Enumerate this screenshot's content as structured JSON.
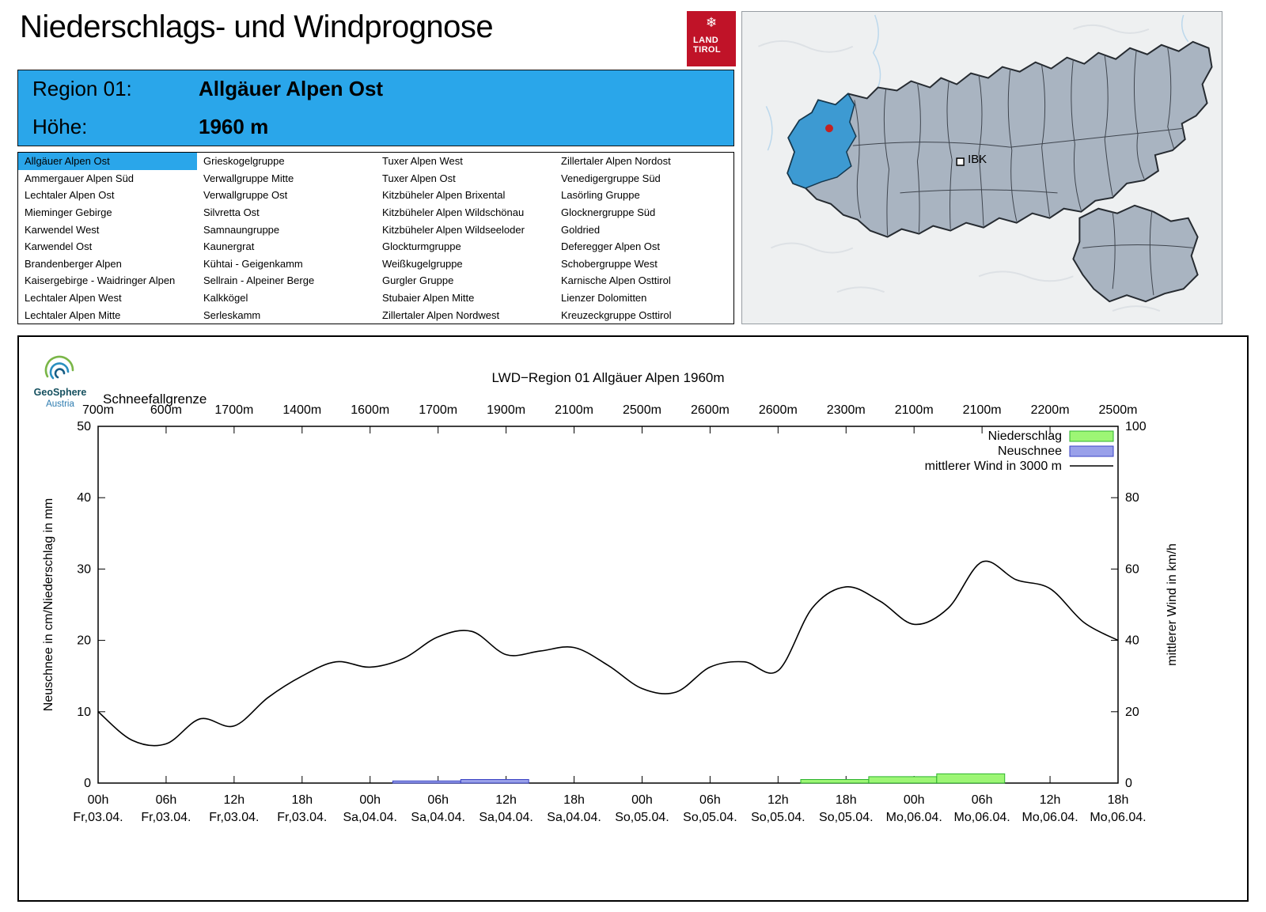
{
  "header": {
    "title": "Niederschlags- und Windprognose"
  },
  "logo": {
    "line1": "LAND",
    "line2": "TIROL"
  },
  "region_box": {
    "label_region": "Region 01:",
    "region_name": "Allgäuer Alpen Ost",
    "label_altitude": "Höhe:",
    "altitude": "1960 m",
    "bg": "#2aa6ea"
  },
  "map": {
    "city_label": "IBK",
    "highlight_color": "#3d9ad2",
    "region_fill": "#a9b4c1",
    "background": "#eef0f1"
  },
  "regions": {
    "selected": "Allgäuer Alpen Ost",
    "columns": [
      [
        "Allgäuer Alpen Ost",
        "Ammergauer Alpen Süd",
        "Lechtaler Alpen Ost",
        "Mieminger Gebirge",
        "Karwendel West",
        "Karwendel Ost",
        "Brandenberger Alpen",
        "Kaisergebirge - Waidringer Alpen",
        "Lechtaler Alpen West",
        "Lechtaler Alpen Mitte"
      ],
      [
        "Grieskogelgruppe",
        "Verwallgruppe Mitte",
        "Verwallgruppe Ost",
        "Silvretta Ost",
        "Samnaungruppe",
        "Kaunergrat",
        "Kühtai - Geigenkamm",
        "Sellrain - Alpeiner Berge",
        "Kalkkögel",
        "Serleskamm"
      ],
      [
        "Tuxer Alpen West",
        "Tuxer Alpen Ost",
        "Kitzbüheler Alpen Brixental",
        "Kitzbüheler Alpen Wildschönau",
        "Kitzbüheler Alpen Wildseeloder",
        "Glockturmgruppe",
        "Weißkugelgruppe",
        "Gurgler Gruppe",
        "Stubaier Alpen Mitte",
        "Zillertaler Alpen Nordwest"
      ],
      [
        "Zillertaler Alpen Nordost",
        "Venedigergruppe Süd",
        "Lasörling Gruppe",
        "Glocknergruppe Süd",
        "Goldried",
        "Deferegger Alpen Ost",
        "Schobergruppe West",
        "Karnische Alpen Osttirol",
        "Lienzer Dolomitten",
        "Kreuzeckgruppe Osttirol"
      ]
    ]
  },
  "attribution": {
    "brand": "GeoSphere",
    "sub": "Austria"
  },
  "chart_data": {
    "type": "line+bar",
    "title": "LWD−Region 01 Allgäuer Alpen 1960m",
    "snowline_label": "Schneefallgrenze",
    "snowline_values": [
      "700m",
      "600m",
      "1700m",
      "1400m",
      "1600m",
      "1700m",
      "1900m",
      "2100m",
      "2500m",
      "2600m",
      "2600m",
      "2300m",
      "2100m",
      "2100m",
      "2200m",
      "2500m"
    ],
    "ylabel_left": "Neuschnee in cm/Niederschlag in mm",
    "ylabel_right": "mittlerer Wind in km/h",
    "ylim_left": [
      0,
      50
    ],
    "ylim_right": [
      0,
      100
    ],
    "yticks_left": [
      0,
      10,
      20,
      30,
      40,
      50
    ],
    "yticks_right": [
      0,
      20,
      40,
      60,
      80,
      100
    ],
    "x_hours_span": [
      0,
      90
    ],
    "x_ticks": [
      {
        "hour": 0,
        "time": "00h",
        "date": "Fr,03.04."
      },
      {
        "hour": 6,
        "time": "06h",
        "date": "Fr,03.04."
      },
      {
        "hour": 12,
        "time": "12h",
        "date": "Fr,03.04."
      },
      {
        "hour": 18,
        "time": "18h",
        "date": "Fr,03.04."
      },
      {
        "hour": 24,
        "time": "00h",
        "date": "Sa,04.04."
      },
      {
        "hour": 30,
        "time": "06h",
        "date": "Sa,04.04."
      },
      {
        "hour": 36,
        "time": "12h",
        "date": "Sa,04.04."
      },
      {
        "hour": 42,
        "time": "18h",
        "date": "Sa,04.04."
      },
      {
        "hour": 48,
        "time": "00h",
        "date": "So,05.04."
      },
      {
        "hour": 54,
        "time": "06h",
        "date": "So,05.04."
      },
      {
        "hour": 60,
        "time": "12h",
        "date": "So,05.04."
      },
      {
        "hour": 66,
        "time": "18h",
        "date": "So,05.04."
      },
      {
        "hour": 72,
        "time": "00h",
        "date": "Mo,06.04."
      },
      {
        "hour": 78,
        "time": "06h",
        "date": "Mo,06.04."
      },
      {
        "hour": 84,
        "time": "12h",
        "date": "Mo,06.04."
      },
      {
        "hour": 90,
        "time": "18h",
        "date": "Mo,06.04."
      }
    ],
    "legend": [
      {
        "label": "Niederschlag",
        "swatch": "box",
        "fill": "#9df675",
        "stroke": "#2db32d"
      },
      {
        "label": "Neuschnee",
        "swatch": "box",
        "fill": "#99a0ea",
        "stroke": "#3a43c4"
      },
      {
        "label": "mittlerer Wind in 3000 m",
        "swatch": "line",
        "stroke": "#000000"
      }
    ],
    "wind_series": {
      "name": "mittlerer Wind in 3000 m",
      "unit": "km/h",
      "step_hours": 3,
      "values": [
        20,
        12,
        11,
        18,
        16,
        24,
        30,
        34,
        32.5,
        35,
        41,
        42.5,
        36,
        37,
        38,
        33,
        26.5,
        25.5,
        32.5,
        34,
        31.5,
        49,
        55,
        51,
        44.5,
        49,
        62,
        57,
        54.5,
        45,
        40
      ]
    },
    "niederschlag_bars_mm": [
      {
        "from_hour": 62,
        "to_hour": 68,
        "value": 0.5
      },
      {
        "from_hour": 68,
        "to_hour": 74,
        "value": 0.9
      },
      {
        "from_hour": 74,
        "to_hour": 80,
        "value": 1.3
      }
    ],
    "neuschnee_bars_cm": [
      {
        "from_hour": 26,
        "to_hour": 32,
        "value": 0.3
      },
      {
        "from_hour": 32,
        "to_hour": 38,
        "value": 0.5
      }
    ]
  }
}
